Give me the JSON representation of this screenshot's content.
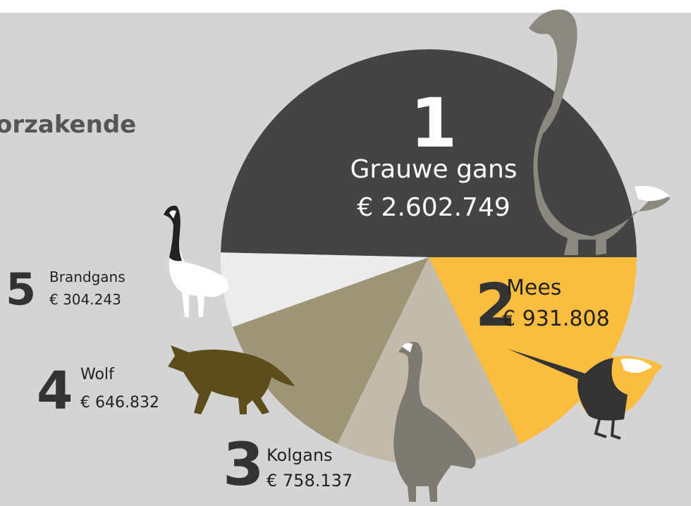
{
  "chart_data": {
    "type": "pie",
    "title": "orzakende",
    "categories": [
      "Grauwe gans",
      "Mees",
      "Kolgans",
      "Wolf",
      "Brandgans"
    ],
    "values": [
      2602749,
      931808,
      758137,
      646832,
      304243
    ],
    "value_labels": [
      "€ 2.602.749",
      "€ 931.808",
      "€ 758.137",
      "€ 646.832",
      "€ 304.243"
    ],
    "ranks": [
      1,
      2,
      3,
      4,
      5
    ],
    "colors": [
      "#444444",
      "#fbbd40",
      "#c2baab",
      "#9e9577",
      "#ececec"
    ]
  }
}
